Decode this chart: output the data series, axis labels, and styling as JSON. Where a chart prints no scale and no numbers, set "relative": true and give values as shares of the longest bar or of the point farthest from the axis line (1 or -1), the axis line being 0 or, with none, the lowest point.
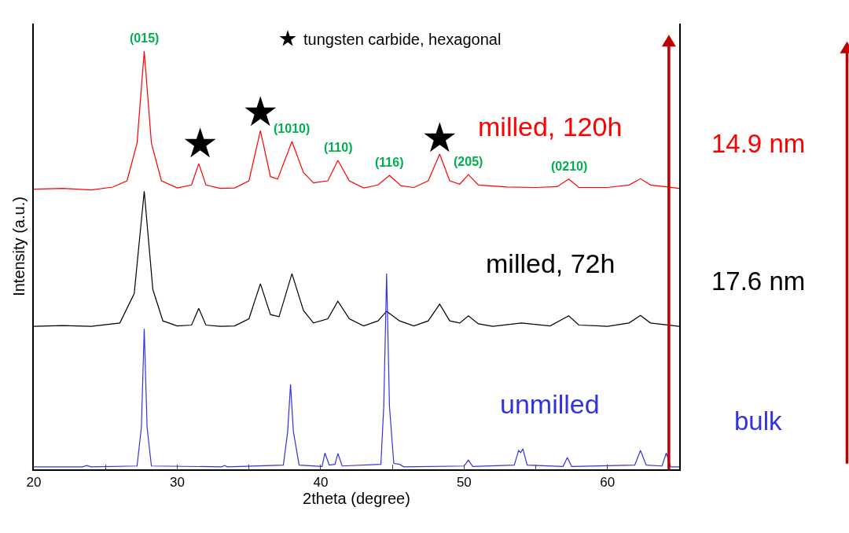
{
  "chart_data": {
    "type": "line",
    "relative": true,
    "xlabel": "2theta (degree)",
    "ylabel": "Intensity (a.u.)",
    "xlim": [
      20,
      65
    ],
    "xticks": [
      20,
      {
        "value": 25,
        "label": null
      },
      30,
      {
        "value": 35,
        "label": null
      },
      40,
      {
        "value": 45,
        "label": null
      },
      50,
      {
        "value": 55,
        "label": null
      },
      60,
      {
        "value": 65,
        "label": null
      }
    ],
    "legend": "top",
    "marker": "none",
    "line_style": "solid",
    "series": [
      {
        "name": "milled, 120h",
        "color": "#ff0000",
        "x": [
          20,
          22,
          24,
          25.5,
          26.5,
          27.2,
          27.7,
          28.2,
          28.9,
          30,
          31,
          31.5,
          32,
          33,
          34,
          35,
          35.8,
          36.5,
          37.0,
          38.0,
          38.8,
          39.5,
          40.5,
          41.2,
          42,
          43,
          44,
          44.8,
          45.6,
          46.5,
          47.5,
          48.3,
          49,
          49.7,
          50.3,
          51,
          53,
          55,
          56.5,
          57.3,
          58,
          60,
          61.5,
          62.3,
          63,
          65
        ],
        "values": [
          0.67,
          0.672,
          0.668,
          0.675,
          0.69,
          0.78,
          1.0,
          0.78,
          0.69,
          0.673,
          0.68,
          0.731,
          0.68,
          0.672,
          0.673,
          0.69,
          0.81,
          0.7,
          0.694,
          0.784,
          0.71,
          0.685,
          0.69,
          0.739,
          0.69,
          0.673,
          0.68,
          0.703,
          0.678,
          0.674,
          0.69,
          0.754,
          0.69,
          0.682,
          0.705,
          0.68,
          0.675,
          0.674,
          0.676,
          0.694,
          0.674,
          0.674,
          0.68,
          0.695,
          0.68,
          0.672
        ]
      },
      {
        "name": "milled, 72h",
        "color": "#000000",
        "x": [
          20,
          22,
          24,
          26,
          27.0,
          27.7,
          28.3,
          29,
          30,
          31,
          31.5,
          32,
          33,
          34,
          35,
          35.8,
          36.5,
          37.1,
          38.0,
          38.8,
          39.5,
          40.5,
          41.2,
          42,
          43,
          44,
          44.6,
          45.5,
          46.5,
          47.5,
          48.3,
          49,
          49.7,
          50.3,
          51,
          52,
          54,
          56,
          57.3,
          58,
          60,
          61.5,
          62.3,
          63,
          65
        ],
        "values": [
          0.342,
          0.344,
          0.342,
          0.35,
          0.42,
          0.665,
          0.43,
          0.355,
          0.343,
          0.345,
          0.385,
          0.345,
          0.342,
          0.343,
          0.36,
          0.444,
          0.37,
          0.365,
          0.468,
          0.38,
          0.35,
          0.36,
          0.402,
          0.36,
          0.343,
          0.355,
          0.378,
          0.355,
          0.343,
          0.355,
          0.395,
          0.355,
          0.35,
          0.367,
          0.348,
          0.342,
          0.35,
          0.343,
          0.367,
          0.345,
          0.342,
          0.35,
          0.368,
          0.35,
          0.342
        ]
      },
      {
        "name": "unmilled",
        "color": "#3333dd",
        "x": [
          20,
          23.4,
          23.7,
          24,
          27.2,
          27.5,
          27.7,
          27.9,
          28.2,
          33.1,
          33.3,
          33.5,
          37.4,
          37.7,
          37.9,
          38.1,
          38.5,
          40.1,
          40.3,
          40.6,
          41.0,
          41.2,
          41.5,
          44.2,
          44.4,
          44.6,
          44.8,
          45.1,
          45.5,
          45.8,
          50.0,
          50.3,
          50.6,
          53.5,
          53.8,
          53.95,
          54.1,
          54.4,
          56.9,
          57.2,
          57.5,
          61.9,
          62.3,
          62.7,
          63.8,
          64.1,
          64.4,
          65
        ],
        "values": [
          0.006,
          0.006,
          0.009,
          0.006,
          0.008,
          0.1,
          0.336,
          0.1,
          0.008,
          0.006,
          0.009,
          0.006,
          0.01,
          0.09,
          0.203,
          0.09,
          0.01,
          0.007,
          0.039,
          0.01,
          0.012,
          0.038,
          0.008,
          0.012,
          0.15,
          0.468,
          0.15,
          0.014,
          0.012,
          0.006,
          0.008,
          0.022,
          0.007,
          0.01,
          0.045,
          0.04,
          0.049,
          0.01,
          0.007,
          0.028,
          0.007,
          0.01,
          0.045,
          0.01,
          0.008,
          0.039,
          0.006,
          0.006
        ]
      },
      {
        "name": "tungsten carbide, hexagonal",
        "type": "scatter",
        "marker": "star",
        "color": "#000000",
        "x": [
          31.6,
          35.8,
          48.3
        ],
        "values": [
          0.778,
          0.853,
          0.791
        ]
      }
    ],
    "annotations": [
      {
        "text": "(015)",
        "x": 27.7,
        "y": 1.0
      },
      {
        "text": "(1010)",
        "x": 38.0,
        "y": 0.784
      },
      {
        "text": "(110)",
        "x": 41.2,
        "y": 0.739
      },
      {
        "text": "(116)",
        "x": 44.8,
        "y": 0.703
      },
      {
        "text": "(205)",
        "x": 50.3,
        "y": 0.705
      },
      {
        "text": "(0210)",
        "x": 57.3,
        "y": 0.694
      },
      "14.9 nm",
      "17.6 nm",
      "bulk"
    ]
  }
}
